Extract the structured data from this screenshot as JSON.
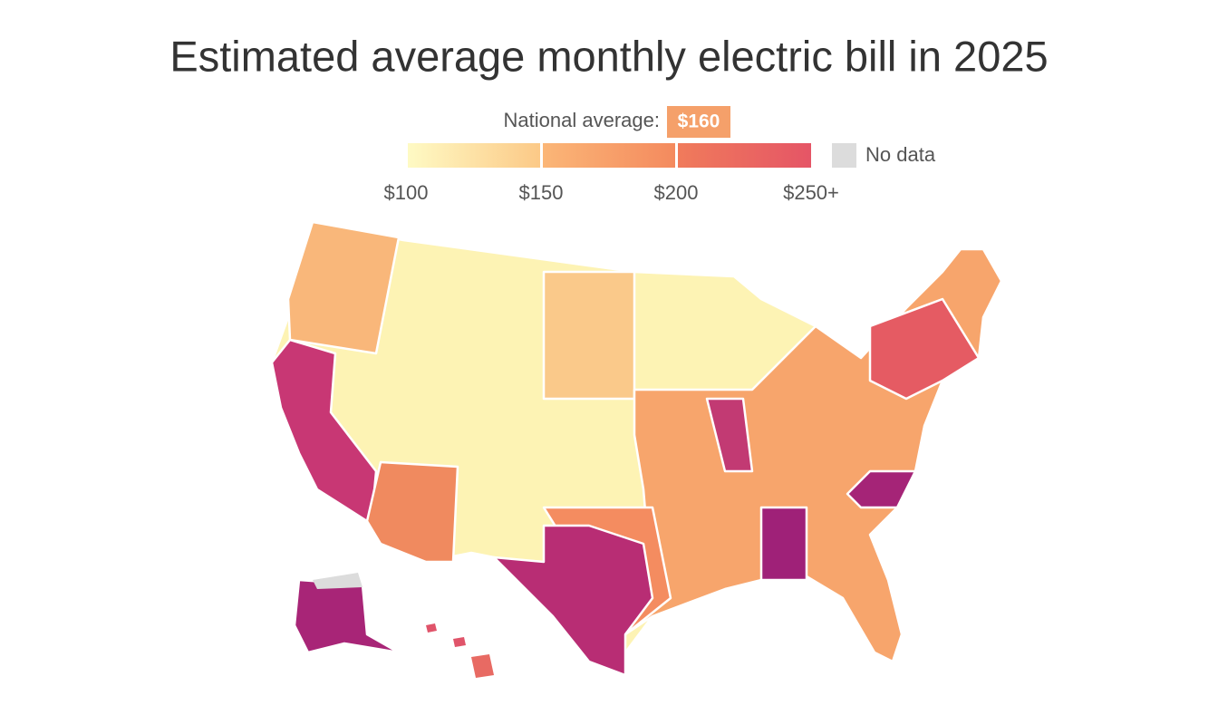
{
  "title": "Estimated average monthly electric bill in 2025",
  "national_average": {
    "label": "National average:",
    "value": "$160"
  },
  "legend": {
    "stops": [
      "$100",
      "$150",
      "$200",
      "$250+"
    ],
    "no_data": "No data"
  }
}
